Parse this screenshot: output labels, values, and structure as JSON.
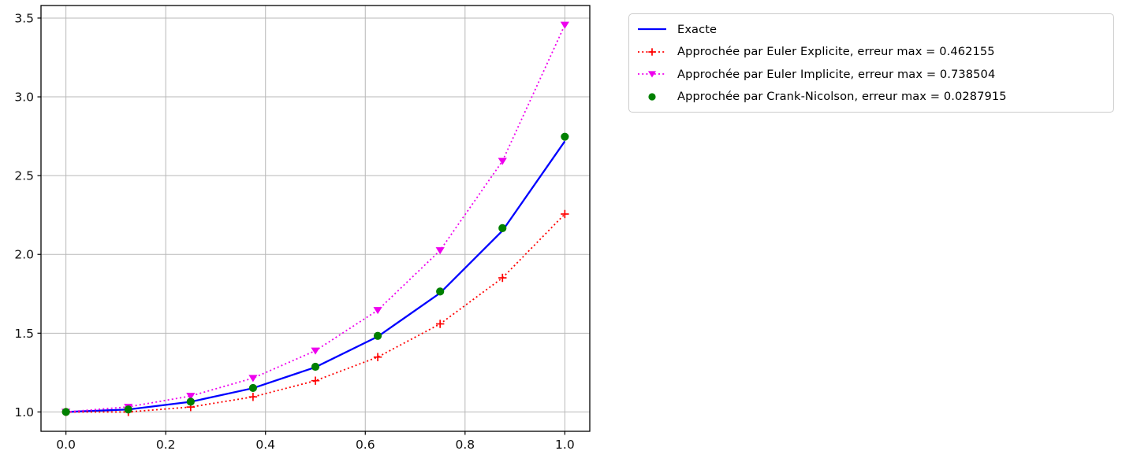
{
  "chart_data": {
    "type": "line",
    "title": "",
    "xlabel": "",
    "ylabel": "",
    "grid": true,
    "grid_color": "#b8b8b8",
    "axis_color": "#000000",
    "background_color": "#ffffff",
    "xlim": [
      -0.05,
      1.05
    ],
    "ylim": [
      0.8772,
      3.5797
    ],
    "xticks": [
      0.0,
      0.2,
      0.4,
      0.6,
      0.8,
      1.0
    ],
    "xtick_labels": [
      "0.0",
      "0.2",
      "0.4",
      "0.6",
      "0.8",
      "1.0"
    ],
    "yticks": [
      1.0,
      1.5,
      2.0,
      2.5,
      3.0,
      3.5
    ],
    "ytick_labels": [
      "1.0",
      "1.5",
      "2.0",
      "2.5",
      "3.0",
      "3.5"
    ],
    "x": [
      0.0,
      0.125,
      0.25,
      0.375,
      0.5,
      0.625,
      0.75,
      0.875,
      1.0
    ],
    "series": [
      {
        "name": "Exacte",
        "color": "#0000ff",
        "linestyle": "solid",
        "marker": "none",
        "values": [
          1.0,
          1.015748,
          1.064494,
          1.150993,
          1.284025,
          1.478337,
          1.755055,
          2.150338,
          2.718282
        ]
      },
      {
        "name": "Approchée par Euler Explicite, erreur max = 0.462155",
        "color": "#ff0000",
        "linestyle": "dotted",
        "marker": "plus",
        "values": [
          1.0,
          1.0,
          1.03125,
          1.095703,
          1.198425,
          1.348228,
          1.558889,
          1.851181,
          2.256127
        ]
      },
      {
        "name": "Approchée par Euler Implicite, erreur max = 0.738504",
        "color": "#ee00ee",
        "linestyle": "dotted",
        "marker": "triangle-down",
        "values": [
          1.0,
          1.032258,
          1.101075,
          1.214979,
          1.388547,
          1.645685,
          2.025459,
          2.592587,
          3.456783
        ]
      },
      {
        "name": "Approchée par Crank-Nicolson, erreur max = 0.0287915",
        "color": "#008000",
        "linestyle": "none",
        "marker": "circle",
        "values": [
          1.0,
          1.015873,
          1.065028,
          1.152327,
          1.286766,
          1.483053,
          1.764322,
          2.16671,
          2.747078
        ]
      }
    ],
    "legend_position": "outside-upper-right"
  }
}
